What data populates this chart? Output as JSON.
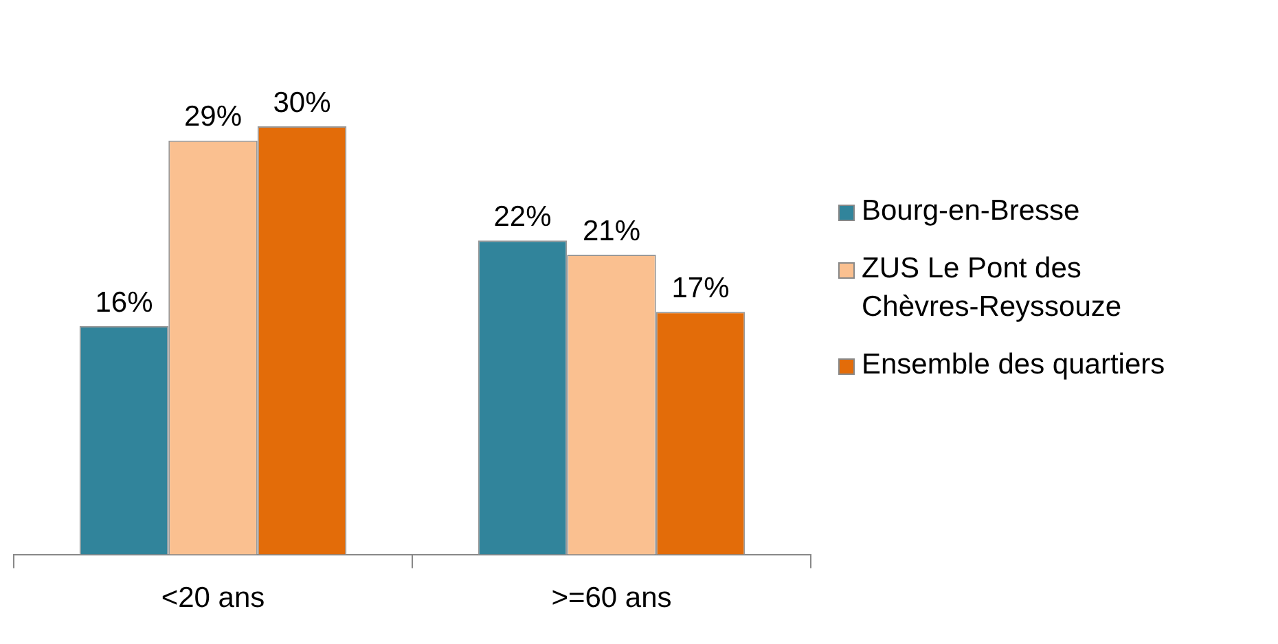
{
  "chart_data": {
    "type": "bar",
    "categories": [
      "<20 ans",
      ">=60 ans"
    ],
    "series": [
      {
        "name": "Bourg-en-Bresse",
        "color": "#31849b",
        "values": [
          16,
          22
        ],
        "value_labels": [
          "16%",
          "22%"
        ]
      },
      {
        "name": "ZUS Le Pont des Chèvres-Reyssouze",
        "color": "#fac090",
        "values": [
          29,
          21
        ],
        "value_labels": [
          "29%",
          "21%"
        ]
      },
      {
        "name": "Ensemble des quartiers",
        "color": "#e36c09",
        "values": [
          30,
          17
        ],
        "value_labels": [
          "30%",
          "17%"
        ]
      }
    ],
    "tick_labels": "x",
    "grid": false,
    "legend": "right"
  }
}
